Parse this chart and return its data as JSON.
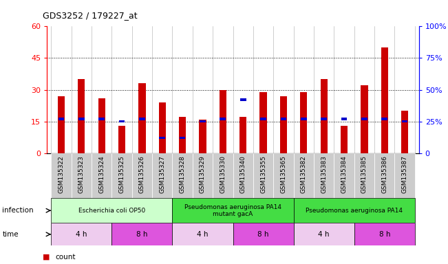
{
  "title": "GDS3252 / 179227_at",
  "samples": [
    "GSM135322",
    "GSM135323",
    "GSM135324",
    "GSM135325",
    "GSM135326",
    "GSM135327",
    "GSM135328",
    "GSM135329",
    "GSM135330",
    "GSM135340",
    "GSM135355",
    "GSM135365",
    "GSM135382",
    "GSM135383",
    "GSM135384",
    "GSM135385",
    "GSM135386",
    "GSM135387"
  ],
  "counts": [
    27,
    35,
    26,
    13,
    33,
    24,
    17,
    16,
    30,
    17,
    29,
    27,
    29,
    35,
    13,
    32,
    50,
    20
  ],
  "percentile_ranks": [
    27,
    27,
    27,
    25,
    27,
    12,
    12,
    25,
    27,
    42,
    27,
    27,
    27,
    27,
    27,
    27,
    27,
    25
  ],
  "bar_color": "#cc0000",
  "percentile_color": "#0000cc",
  "ylim_left": [
    0,
    60
  ],
  "ylim_right": [
    0,
    100
  ],
  "yticks_left": [
    0,
    15,
    30,
    45,
    60
  ],
  "yticks_right": [
    0,
    25,
    50,
    75,
    100
  ],
  "ytick_labels_left": [
    "0",
    "15",
    "30",
    "45",
    "60"
  ],
  "ytick_labels_right": [
    "0",
    "25%",
    "50%",
    "75%",
    "100%"
  ],
  "infection_groups": [
    {
      "label": "Escherichia coli OP50",
      "start": 0,
      "end": 6,
      "color": "#ccffcc"
    },
    {
      "label": "Pseudomonas aeruginosa PA14\nmutant gacA",
      "start": 6,
      "end": 12,
      "color": "#44dd44"
    },
    {
      "label": "Pseudomonas aeruginosa PA14",
      "start": 12,
      "end": 18,
      "color": "#44dd44"
    }
  ],
  "time_groups": [
    {
      "label": "4 h",
      "start": 0,
      "end": 3,
      "color": "#eeccee"
    },
    {
      "label": "8 h",
      "start": 3,
      "end": 6,
      "color": "#dd55dd"
    },
    {
      "label": "4 h",
      "start": 6,
      "end": 9,
      "color": "#eeccee"
    },
    {
      "label": "8 h",
      "start": 9,
      "end": 12,
      "color": "#dd55dd"
    },
    {
      "label": "4 h",
      "start": 12,
      "end": 15,
      "color": "#eeccee"
    },
    {
      "label": "8 h",
      "start": 15,
      "end": 18,
      "color": "#dd55dd"
    }
  ],
  "bar_width": 0.35,
  "tick_bg_color": "#cccccc",
  "white_bg": "#ffffff",
  "legend_count_color": "#cc0000",
  "legend_pct_color": "#0000cc"
}
